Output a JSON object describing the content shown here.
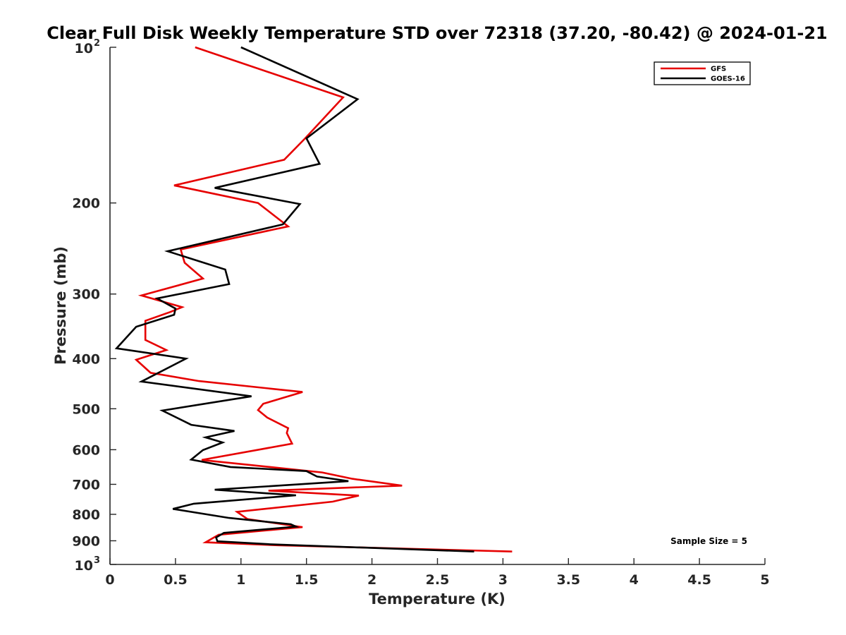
{
  "chart_data": {
    "type": "line",
    "title": "Clear Full Disk Weekly Temperature STD over 72318 (37.20, -80.42) @ 2024-01-21",
    "xlabel": "Temperature (K)",
    "ylabel": "Pressure (mb)",
    "xlim": [
      0,
      5
    ],
    "ylim": [
      1000,
      100
    ],
    "y_scale": "log",
    "y_reversed": true,
    "grid": false,
    "legend_position": "top-right",
    "x_ticks": [
      "0",
      "0.5",
      "1",
      "1.5",
      "2",
      "2.5",
      "3",
      "3.5",
      "4",
      "4.5",
      "5"
    ],
    "y_ticks": [
      {
        "value": 100,
        "label": "10",
        "sup": "2"
      },
      {
        "value": 200,
        "label": "200"
      },
      {
        "value": 300,
        "label": "300"
      },
      {
        "value": 400,
        "label": "400"
      },
      {
        "value": 500,
        "label": "500"
      },
      {
        "value": 600,
        "label": "600"
      },
      {
        "value": 700,
        "label": "700"
      },
      {
        "value": 800,
        "label": "800"
      },
      {
        "value": 900,
        "label": "900"
      },
      {
        "value": 1000,
        "label": "10",
        "sup": "3"
      }
    ],
    "annotation": "Sample Size = 5",
    "series": [
      {
        "name": "GFS",
        "color": "#e60000",
        "points": [
          [
            0.65,
            100
          ],
          [
            1.78,
            125
          ],
          [
            1.49,
            150
          ],
          [
            1.33,
            165
          ],
          [
            0.49,
            185
          ],
          [
            1.13,
            200
          ],
          [
            1.36,
            222
          ],
          [
            0.54,
            246
          ],
          [
            0.57,
            261
          ],
          [
            0.71,
            280
          ],
          [
            0.24,
            302
          ],
          [
            0.55,
            318
          ],
          [
            0.46,
            325
          ],
          [
            0.27,
            338
          ],
          [
            0.27,
            368
          ],
          [
            0.43,
            385
          ],
          [
            0.2,
            402
          ],
          [
            0.31,
            426
          ],
          [
            0.68,
            442
          ],
          [
            1.47,
            464
          ],
          [
            1.17,
            489
          ],
          [
            1.13,
            503
          ],
          [
            1.2,
            520
          ],
          [
            1.36,
            545
          ],
          [
            1.35,
            557
          ],
          [
            1.39,
            584
          ],
          [
            0.7,
            628
          ],
          [
            1.62,
            664
          ],
          [
            1.85,
            683
          ],
          [
            2.23,
            704
          ],
          [
            1.21,
            720
          ],
          [
            1.9,
            736
          ],
          [
            1.7,
            756
          ],
          [
            0.97,
            791
          ],
          [
            1.05,
            817
          ],
          [
            1.47,
            847
          ],
          [
            0.83,
            876
          ],
          [
            0.73,
            906
          ],
          [
            1.28,
            918
          ],
          [
            3.07,
            944
          ]
        ]
      },
      {
        "name": "GOES-16",
        "color": "#000000",
        "points": [
          [
            1.0,
            100
          ],
          [
            1.89,
            126
          ],
          [
            1.5,
            150
          ],
          [
            1.6,
            168
          ],
          [
            0.8,
            187
          ],
          [
            1.45,
            201
          ],
          [
            1.32,
            220
          ],
          [
            0.44,
            248
          ],
          [
            0.88,
            269
          ],
          [
            0.91,
            287
          ],
          [
            0.36,
            306
          ],
          [
            0.5,
            320
          ],
          [
            0.49,
            329
          ],
          [
            0.2,
            347
          ],
          [
            0.13,
            363
          ],
          [
            0.05,
            382
          ],
          [
            0.58,
            400
          ],
          [
            0.24,
            443
          ],
          [
            1.08,
            473
          ],
          [
            0.4,
            504
          ],
          [
            0.62,
            537
          ],
          [
            0.95,
            552
          ],
          [
            0.73,
            568
          ],
          [
            0.86,
            581
          ],
          [
            0.71,
            601
          ],
          [
            0.62,
            627
          ],
          [
            0.92,
            648
          ],
          [
            1.5,
            660
          ],
          [
            1.58,
            676
          ],
          [
            1.82,
            690
          ],
          [
            0.8,
            717
          ],
          [
            1.42,
            735
          ],
          [
            0.64,
            763
          ],
          [
            0.48,
            781
          ],
          [
            0.91,
            813
          ],
          [
            1.38,
            836
          ],
          [
            1.42,
            845
          ],
          [
            0.87,
            869
          ],
          [
            0.81,
            887
          ],
          [
            0.82,
            902
          ],
          [
            1.22,
            914
          ],
          [
            2.78,
            944
          ]
        ]
      }
    ]
  }
}
